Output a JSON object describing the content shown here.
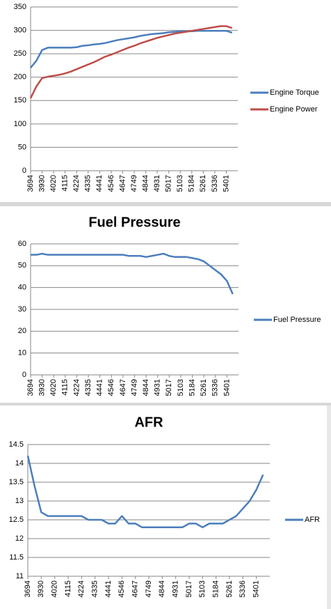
{
  "chart_data": [
    {
      "type": "line",
      "grid": true,
      "ylim": [
        0,
        350
      ],
      "yticks": [
        0,
        50,
        100,
        150,
        200,
        250,
        300,
        350
      ],
      "legend": "right",
      "categories": [
        "3694",
        null,
        "3930",
        null,
        "4020",
        null,
        "4115",
        null,
        "4224",
        null,
        "4335",
        null,
        "4441",
        null,
        "4546",
        null,
        "4647",
        null,
        "4749",
        null,
        "4844",
        null,
        "4931",
        null,
        "5017",
        null,
        "5103",
        null,
        "5184",
        null,
        "5261",
        null,
        "5336",
        null,
        "5401",
        null
      ],
      "series": [
        {
          "name": "Engine Torque",
          "color": "#4a7ebb",
          "values": [
            220,
            235,
            258,
            263,
            263,
            263,
            263,
            263,
            264,
            267,
            268,
            270,
            271,
            273,
            276,
            279,
            281,
            283,
            285,
            288,
            290,
            292,
            293,
            294,
            296,
            297,
            298,
            298,
            298,
            299,
            299,
            299,
            299,
            299,
            299,
            295
          ]
        },
        {
          "name": "Engine Power",
          "color": "#be4b48",
          "values": [
            155,
            180,
            198,
            201,
            203,
            205,
            208,
            212,
            217,
            222,
            227,
            232,
            238,
            244,
            248,
            253,
            258,
            263,
            267,
            272,
            276,
            280,
            284,
            287,
            290,
            293,
            295,
            297,
            299,
            301,
            303,
            305,
            307,
            309,
            309,
            305
          ]
        }
      ]
    },
    {
      "type": "line",
      "title": "Fuel Pressure",
      "grid": true,
      "ylim": [
        0,
        60
      ],
      "yticks": [
        0,
        10,
        20,
        30,
        40,
        50,
        60
      ],
      "legend": "right",
      "categories": [
        "3694",
        null,
        "3930",
        null,
        "4020",
        null,
        "4115",
        null,
        "4224",
        null,
        "4335",
        null,
        "4441",
        null,
        "4546",
        null,
        "4647",
        null,
        "4749",
        null,
        "4844",
        null,
        "4931",
        null,
        "5017",
        null,
        "5103",
        null,
        "5184",
        null,
        "5261",
        null,
        "5336",
        null,
        "5401",
        null
      ],
      "series": [
        {
          "name": "Fuel Pressure",
          "color": "#4a7ebb",
          "values": [
            55,
            55,
            55.5,
            55,
            55,
            55,
            55,
            55,
            55,
            55,
            55,
            55,
            55,
            55,
            55,
            55,
            55,
            54.5,
            54.5,
            54.5,
            54,
            54.5,
            55,
            55.5,
            54.5,
            54,
            54,
            54,
            53.5,
            53,
            52,
            50,
            48,
            46,
            43,
            37
          ]
        }
      ]
    },
    {
      "type": "line",
      "title": "AFR",
      "grid": true,
      "ylim": [
        11,
        14.5
      ],
      "yticks": [
        11,
        11.5,
        12,
        12.5,
        13,
        13.5,
        14,
        14.5
      ],
      "legend": "right",
      "categories": [
        "3694",
        null,
        "3930",
        null,
        "4020",
        null,
        "4115",
        null,
        "4224",
        null,
        "4335",
        null,
        "4441",
        null,
        "4546",
        null,
        "4647",
        null,
        "4749",
        null,
        "4844",
        null,
        "4931",
        null,
        "5017",
        null,
        "5103",
        null,
        "5184",
        null,
        "5261",
        null,
        "5336",
        null,
        "5401",
        null
      ],
      "series": [
        {
          "name": "AFR",
          "color": "#4a7ebb",
          "values": [
            14.2,
            13.4,
            12.7,
            12.6,
            12.6,
            12.6,
            12.6,
            12.6,
            12.6,
            12.5,
            12.5,
            12.5,
            12.4,
            12.4,
            12.6,
            12.4,
            12.4,
            12.3,
            12.3,
            12.3,
            12.3,
            12.3,
            12.3,
            12.3,
            12.4,
            12.4,
            12.3,
            12.4,
            12.4,
            12.4,
            12.5,
            12.6,
            12.8,
            13.0,
            13.3,
            13.7
          ]
        }
      ]
    }
  ]
}
